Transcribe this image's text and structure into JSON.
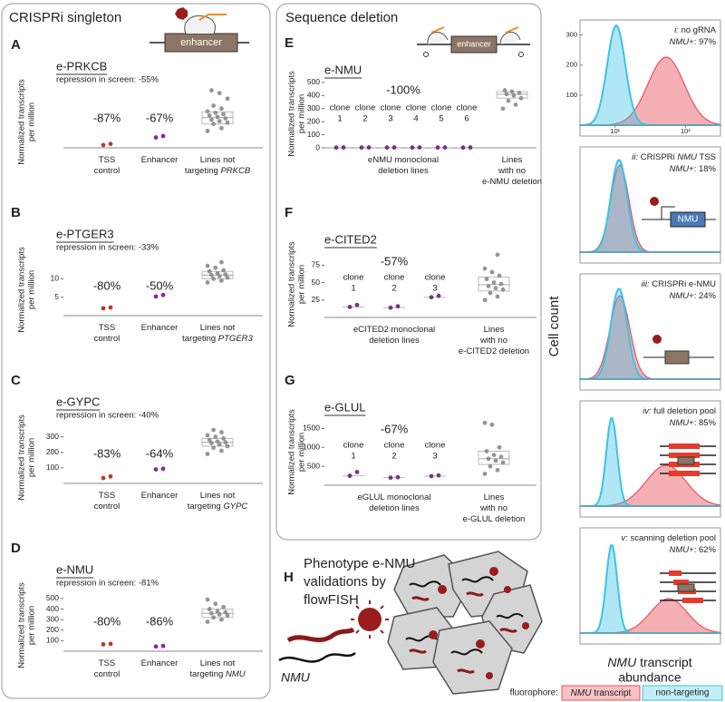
{
  "crispri": {
    "heading": "CRISPRi singleton",
    "icon_label": "enhancer",
    "panels": [
      {
        "letter": "A",
        "title": "e-PRKCB",
        "subtitle": "repression in screen: -55%",
        "ylabel": [
          "Normalized transcripts",
          "per million"
        ],
        "ylim": [
          0,
          210
        ],
        "groups": [
          {
            "label": [
              "TSS",
              "control"
            ],
            "annotation": "-87%",
            "color": "#b5221b",
            "values": [
              10,
              14
            ]
          },
          {
            "label": [
              "Enhancer"
            ],
            "annotation": "-67%",
            "color": "#6b1f7a",
            "values": [
              37,
              42
            ]
          },
          {
            "label": [
              "Lines not",
              "targeting "
            ],
            "label_gene": "PRKCB",
            "color": "#8a8a8a",
            "values": [
              60,
              70,
              85,
              90,
              95,
              100,
              105,
              110,
              115,
              120,
              125,
              130,
              140,
              150,
              175,
              195,
              205
            ],
            "box": [
              85,
              108,
              128
            ]
          }
        ]
      },
      {
        "letter": "B",
        "title": "e-PTGER3",
        "subtitle": "repression in screen: -33%",
        "ylabel": [
          "Normalized transcripts",
          "per million"
        ],
        "ylim": [
          0,
          16
        ],
        "yticks": [
          5,
          10
        ],
        "groups": [
          {
            "label": [
              "TSS",
              "control"
            ],
            "annotation": "-80%",
            "color": "#b5221b",
            "values": [
              2,
              2.2
            ]
          },
          {
            "label": [
              "Enhancer"
            ],
            "annotation": "-50%",
            "color": "#6b1f7a",
            "values": [
              5.2,
              5.6
            ]
          },
          {
            "label": [
              "Lines not",
              "targeting "
            ],
            "label_gene": "PTGER3",
            "color": "#8a8a8a",
            "values": [
              9,
              9.5,
              10,
              10.3,
              10.7,
              11,
              11.2,
              11.5,
              12,
              12.3,
              13,
              13.5,
              14.5
            ],
            "box": [
              10,
              11,
              12
            ]
          }
        ]
      },
      {
        "letter": "C",
        "title": "e-GYPC",
        "subtitle": "repression in screen: -40%",
        "ylabel": [
          "Normalized transcripts",
          "per million"
        ],
        "ylim": [
          0,
          380
        ],
        "yticks": [
          100,
          200,
          300
        ],
        "groups": [
          {
            "label": [
              "TSS",
              "control"
            ],
            "annotation": "-83%",
            "color": "#b5221b",
            "values": [
              35,
              45
            ]
          },
          {
            "label": [
              "Enhancer"
            ],
            "annotation": "-64%",
            "color": "#6b1f7a",
            "values": [
              90,
              95
            ]
          },
          {
            "label": [
              "Lines not",
              "targeting "
            ],
            "label_gene": "GYPC",
            "color": "#8a8a8a",
            "values": [
              190,
              210,
              230,
              240,
              250,
              260,
              265,
              270,
              280,
              290,
              300,
              310,
              330,
              345
            ],
            "box": [
              240,
              265,
              290
            ]
          }
        ]
      },
      {
        "letter": "D",
        "title": "e-NMU",
        "subtitle": "repression in screen: -81%",
        "ylabel": [
          "Normalized transcripts",
          "per million"
        ],
        "ylim": [
          0,
          560
        ],
        "yticks": [
          100,
          200,
          300,
          400,
          500
        ],
        "groups": [
          {
            "label": [
              "TSS",
              "control"
            ],
            "annotation": "-80%",
            "color": "#b5221b",
            "values": [
              65,
              70
            ]
          },
          {
            "label": [
              "Enhancer"
            ],
            "annotation": "-86%",
            "color": "#6b1f7a",
            "values": [
              45,
              50
            ]
          },
          {
            "label": [
              "Lines not",
              "targeting "
            ],
            "label_gene": "NMU",
            "color": "#8a8a8a",
            "values": [
              280,
              300,
              320,
              340,
              350,
              360,
              370,
              380,
              400,
              420,
              450,
              490
            ],
            "box": [
              320,
              360,
              400
            ]
          }
        ]
      }
    ]
  },
  "deletion": {
    "heading": "Sequence deletion",
    "icon_label": "enhancer",
    "clone_color": "#6b1f7a",
    "lines_color": "#8a8a8a",
    "panels": [
      {
        "letter": "E",
        "title": "e-NMU",
        "ylabel": [
          "Normalized transcripts",
          "per million"
        ],
        "ylim": [
          0,
          520
        ],
        "yticks": [
          0,
          100,
          200,
          300,
          400,
          500
        ],
        "annotation": "-100%",
        "clones": [
          {
            "label": [
              "clone",
              "1"
            ],
            "values": [
              2,
              3
            ]
          },
          {
            "label": [
              "clone",
              "2"
            ],
            "values": [
              2,
              3
            ]
          },
          {
            "label": [
              "clone",
              "3"
            ],
            "values": [
              2,
              3
            ]
          },
          {
            "label": [
              "clone",
              "4"
            ],
            "values": [
              2,
              3
            ]
          },
          {
            "label": [
              "clone",
              "5"
            ],
            "values": [
              2,
              3
            ]
          },
          {
            "label": [
              "clone",
              "6"
            ],
            "values": [
              2,
              3
            ]
          }
        ],
        "clones_label": [
          "eNMU monoclonal",
          "deletion lines"
        ],
        "lines": {
          "label": [
            "Lines",
            "with no",
            "e-NMU deletion"
          ],
          "values": [
            300,
            330,
            360,
            380,
            400,
            410,
            420,
            430,
            440
          ],
          "box": [
            380,
            410,
            430
          ]
        }
      },
      {
        "letter": "F",
        "title": "e-CITED2",
        "ylabel": [
          "Normalized transcripts",
          "per million"
        ],
        "ylim": [
          0,
          95
        ],
        "yticks": [
          25,
          50,
          75
        ],
        "annotation": "-57%",
        "clones": [
          {
            "label": [
              "clone",
              "1"
            ],
            "values": [
              15,
              18
            ]
          },
          {
            "label": [
              "clone",
              "2"
            ],
            "values": [
              14,
              16
            ]
          },
          {
            "label": [
              "clone",
              "3"
            ],
            "values": [
              29,
              31
            ]
          }
        ],
        "clones_label": [
          "eCITED2 monoclonal",
          "deletion lines"
        ],
        "lines": {
          "label": [
            "Lines",
            "with no",
            "e-CITED2 deletion"
          ],
          "values": [
            25,
            30,
            35,
            40,
            42,
            45,
            48,
            50,
            55,
            60,
            65,
            70,
            90
          ],
          "box": [
            38,
            47,
            58
          ]
        }
      },
      {
        "letter": "G",
        "title": "e-GLUL",
        "ylabel": [
          "Normalized transcripts",
          "per million"
        ],
        "ylim": [
          0,
          1750
        ],
        "yticks": [
          500,
          1000,
          1500
        ],
        "annotation": "-67%",
        "clones": [
          {
            "label": [
              "clone",
              "1"
            ],
            "values": [
              250,
              350
            ]
          },
          {
            "label": [
              "clone",
              "2"
            ],
            "values": [
              200,
              210
            ]
          },
          {
            "label": [
              "clone",
              "3"
            ],
            "values": [
              240,
              260
            ]
          }
        ],
        "clones_label": [
          "eGLUL monoclonal",
          "deletion lines"
        ],
        "lines": {
          "label": [
            "Lines",
            "with no",
            "e-GLUL deletion"
          ],
          "values": [
            300,
            400,
            500,
            600,
            650,
            700,
            750,
            800,
            900,
            1000,
            1600,
            1650
          ],
          "box": [
            550,
            700,
            900
          ]
        }
      }
    ]
  },
  "phenotype": {
    "letter": "H",
    "text": [
      "Phenotype e-NMU",
      "validations by",
      "flowFISH"
    ],
    "gene": "NMU"
  },
  "flow": {
    "ylabel": "Cell count",
    "xlabel_gene": "NMU",
    "xlabel": [
      " transcript",
      "abundance"
    ],
    "legend_title": "fluorophore:",
    "series": [
      {
        "gene": "NMU",
        "name": " transcript",
        "color": "#e8505b"
      },
      {
        "name": "non-targeting",
        "color": "#3cc3e6"
      }
    ],
    "panels": [
      {
        "title": [
          {
            "text": "i:",
            "italic": true
          },
          {
            "text": " no gRNA"
          }
        ],
        "stat": [
          {
            "text": "NMU",
            "italic": true
          },
          {
            "text": "+: 97%"
          }
        ],
        "ylim": [
          0,
          350
        ],
        "yticks": [
          100,
          200,
          300
        ],
        "xlim": [
          1,
          10000
        ],
        "xscale": "log",
        "xticks": [
          {
            "value": 10,
            "label": "10¹"
          },
          {
            "value": 1000,
            "label": "10³"
          }
        ]
      },
      {
        "title": [
          {
            "text": "ii:",
            "italic": true
          },
          {
            "text": " CRISPRi "
          },
          {
            "text": "NMU",
            "italic": true
          },
          {
            "text": " TSS"
          }
        ],
        "stat": [
          {
            "text": "NMU",
            "italic": true
          },
          {
            "text": "+: 18%"
          }
        ],
        "icon_label": "NMU"
      },
      {
        "title": [
          {
            "text": "iii:",
            "italic": true
          },
          {
            "text": " CRISPRi e-NMU"
          }
        ],
        "stat": [
          {
            "text": "NMU",
            "italic": true
          },
          {
            "text": "+: 24%"
          }
        ]
      },
      {
        "title": [
          {
            "text": "iv:",
            "italic": true
          },
          {
            "text": " full deletion pool"
          }
        ],
        "stat": [
          {
            "text": "NMU",
            "italic": true
          },
          {
            "text": "+: 85%"
          }
        ]
      },
      {
        "title": [
          {
            "text": "v:",
            "italic": true
          },
          {
            "text": " scanning deletion pool"
          }
        ],
        "stat": [
          {
            "text": "NMU",
            "italic": true
          },
          {
            "text": "+: 62%"
          }
        ]
      }
    ]
  }
}
